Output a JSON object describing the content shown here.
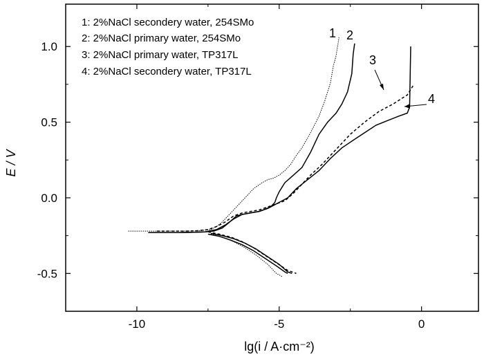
{
  "chart_data": {
    "type": "line",
    "title": "",
    "xlabel": "lg(i / A·cm⁻²)",
    "ylabel": "E / V",
    "xlim": [
      -12.5,
      2
    ],
    "ylim": [
      -0.75,
      1.28
    ],
    "xticks": [
      -10,
      -5,
      0
    ],
    "yticks": [
      -0.5,
      0.0,
      0.5,
      1.0
    ],
    "xtick_labels": [
      "-10",
      "-5",
      "0"
    ],
    "ytick_labels": [
      "-0.5",
      "0.0",
      "0.5",
      "1.0"
    ],
    "grid": false,
    "legend_position": "top-left",
    "legend": [
      "1: 2%NaCl secondery water, 254SMo",
      "2: 2%NaCl primary water, 254SMo",
      "3: 2%NaCl primary water, TP317L",
      "4: 2%NaCl secondery water, TP317L"
    ],
    "series": [
      {
        "name": "1",
        "style": "dotted-thin",
        "x": [
          -10.3,
          -9.5,
          -8.5,
          -7.8,
          -7.4,
          -7.2,
          -7.0,
          -6.6,
          -6.2,
          -5.9,
          -5.6,
          -5.4,
          -5.2,
          -5.0,
          -4.8,
          -4.6,
          -4.4,
          -4.2,
          -3.9,
          -3.6,
          -3.4,
          -3.2,
          -3.1,
          -3.0,
          -2.95,
          -2.9
        ],
        "y": [
          -0.22,
          -0.22,
          -0.22,
          -0.218,
          -0.21,
          -0.19,
          -0.16,
          -0.08,
          0.0,
          0.06,
          0.1,
          0.12,
          0.13,
          0.15,
          0.18,
          0.22,
          0.28,
          0.33,
          0.43,
          0.54,
          0.64,
          0.76,
          0.87,
          0.94,
          1.0,
          1.06
        ]
      },
      {
        "name": "2",
        "style": "solid",
        "x": [
          -9.6,
          -9.0,
          -8.5,
          -8.0,
          -7.6,
          -7.3,
          -7.0,
          -6.8,
          -6.5,
          -6.3,
          -6.0,
          -5.7,
          -5.5,
          -5.3,
          -5.15,
          -5.1,
          -5.0,
          -4.8,
          -4.5,
          -4.2,
          -3.9,
          -3.6,
          -3.3,
          -3.0,
          -2.8,
          -2.6,
          -2.45,
          -2.4,
          -2.35
        ],
        "y": [
          -0.23,
          -0.23,
          -0.23,
          -0.228,
          -0.225,
          -0.22,
          -0.2,
          -0.17,
          -0.12,
          -0.11,
          -0.1,
          -0.09,
          -0.075,
          -0.06,
          -0.03,
          0.0,
          0.04,
          0.1,
          0.15,
          0.2,
          0.3,
          0.42,
          0.5,
          0.56,
          0.62,
          0.7,
          0.82,
          0.95,
          1.02
        ]
      },
      {
        "name": "3",
        "style": "dashed",
        "x": [
          -9.3,
          -8.8,
          -8.3,
          -7.9,
          -7.5,
          -7.2,
          -6.9,
          -6.6,
          -6.3,
          -6.0,
          -5.7,
          -5.4,
          -5.1,
          -4.8,
          -4.5,
          -4.2,
          -3.9,
          -3.5,
          -3.0,
          -2.5,
          -2.0,
          -1.5,
          -1.0,
          -0.5,
          -0.3
        ],
        "y": [
          -0.22,
          -0.22,
          -0.22,
          -0.218,
          -0.21,
          -0.19,
          -0.16,
          -0.12,
          -0.1,
          -0.09,
          -0.08,
          -0.06,
          -0.04,
          -0.02,
          0.03,
          0.09,
          0.15,
          0.22,
          0.32,
          0.42,
          0.5,
          0.57,
          0.62,
          0.68,
          0.74
        ]
      },
      {
        "name": "4",
        "style": "solid",
        "x": [
          -9.6,
          -9.0,
          -8.5,
          -8.0,
          -7.6,
          -7.2,
          -6.9,
          -6.6,
          -6.3,
          -6.0,
          -5.7,
          -5.4,
          -5.2,
          -5.0,
          -4.7,
          -4.4,
          -4.0,
          -3.6,
          -3.2,
          -2.8,
          -2.4,
          -2.0,
          -1.6,
          -1.2,
          -0.8,
          -0.5,
          -0.42,
          -0.4,
          -0.38
        ],
        "y": [
          -0.23,
          -0.23,
          -0.23,
          -0.228,
          -0.225,
          -0.21,
          -0.18,
          -0.14,
          -0.11,
          -0.1,
          -0.09,
          -0.07,
          -0.05,
          -0.03,
          0.0,
          0.06,
          0.12,
          0.18,
          0.26,
          0.33,
          0.38,
          0.43,
          0.48,
          0.51,
          0.54,
          0.56,
          0.6,
          0.8,
          1.0
        ]
      },
      {
        "name": "1-cathodic",
        "style": "dotted-thin",
        "x": [
          -7.4,
          -7.0,
          -6.6,
          -6.2,
          -5.8,
          -5.4,
          -5.1,
          -4.9
        ],
        "y": [
          -0.24,
          -0.26,
          -0.29,
          -0.33,
          -0.38,
          -0.44,
          -0.5,
          -0.52
        ]
      },
      {
        "name": "2-cathodic",
        "style": "solid",
        "x": [
          -7.4,
          -7.0,
          -6.6,
          -6.2,
          -5.8,
          -5.4,
          -5.0,
          -4.7,
          -4.55
        ],
        "y": [
          -0.235,
          -0.25,
          -0.27,
          -0.3,
          -0.34,
          -0.39,
          -0.44,
          -0.49,
          -0.5
        ]
      },
      {
        "name": "3-cathodic",
        "style": "dashed",
        "x": [
          -7.5,
          -7.1,
          -6.7,
          -6.3,
          -5.9,
          -5.5,
          -5.1,
          -4.7,
          -4.4
        ],
        "y": [
          -0.225,
          -0.24,
          -0.26,
          -0.29,
          -0.33,
          -0.38,
          -0.43,
          -0.48,
          -0.5
        ]
      },
      {
        "name": "4-cathodic",
        "style": "solid",
        "x": [
          -7.5,
          -7.1,
          -6.7,
          -6.3,
          -5.9,
          -5.5,
          -5.1,
          -4.8,
          -4.7
        ],
        "y": [
          -0.24,
          -0.255,
          -0.28,
          -0.31,
          -0.35,
          -0.4,
          -0.45,
          -0.49,
          -0.5
        ]
      }
    ],
    "annotations": [
      {
        "text": "1"
      },
      {
        "text": "2"
      },
      {
        "text": "3"
      },
      {
        "text": "4"
      }
    ]
  }
}
